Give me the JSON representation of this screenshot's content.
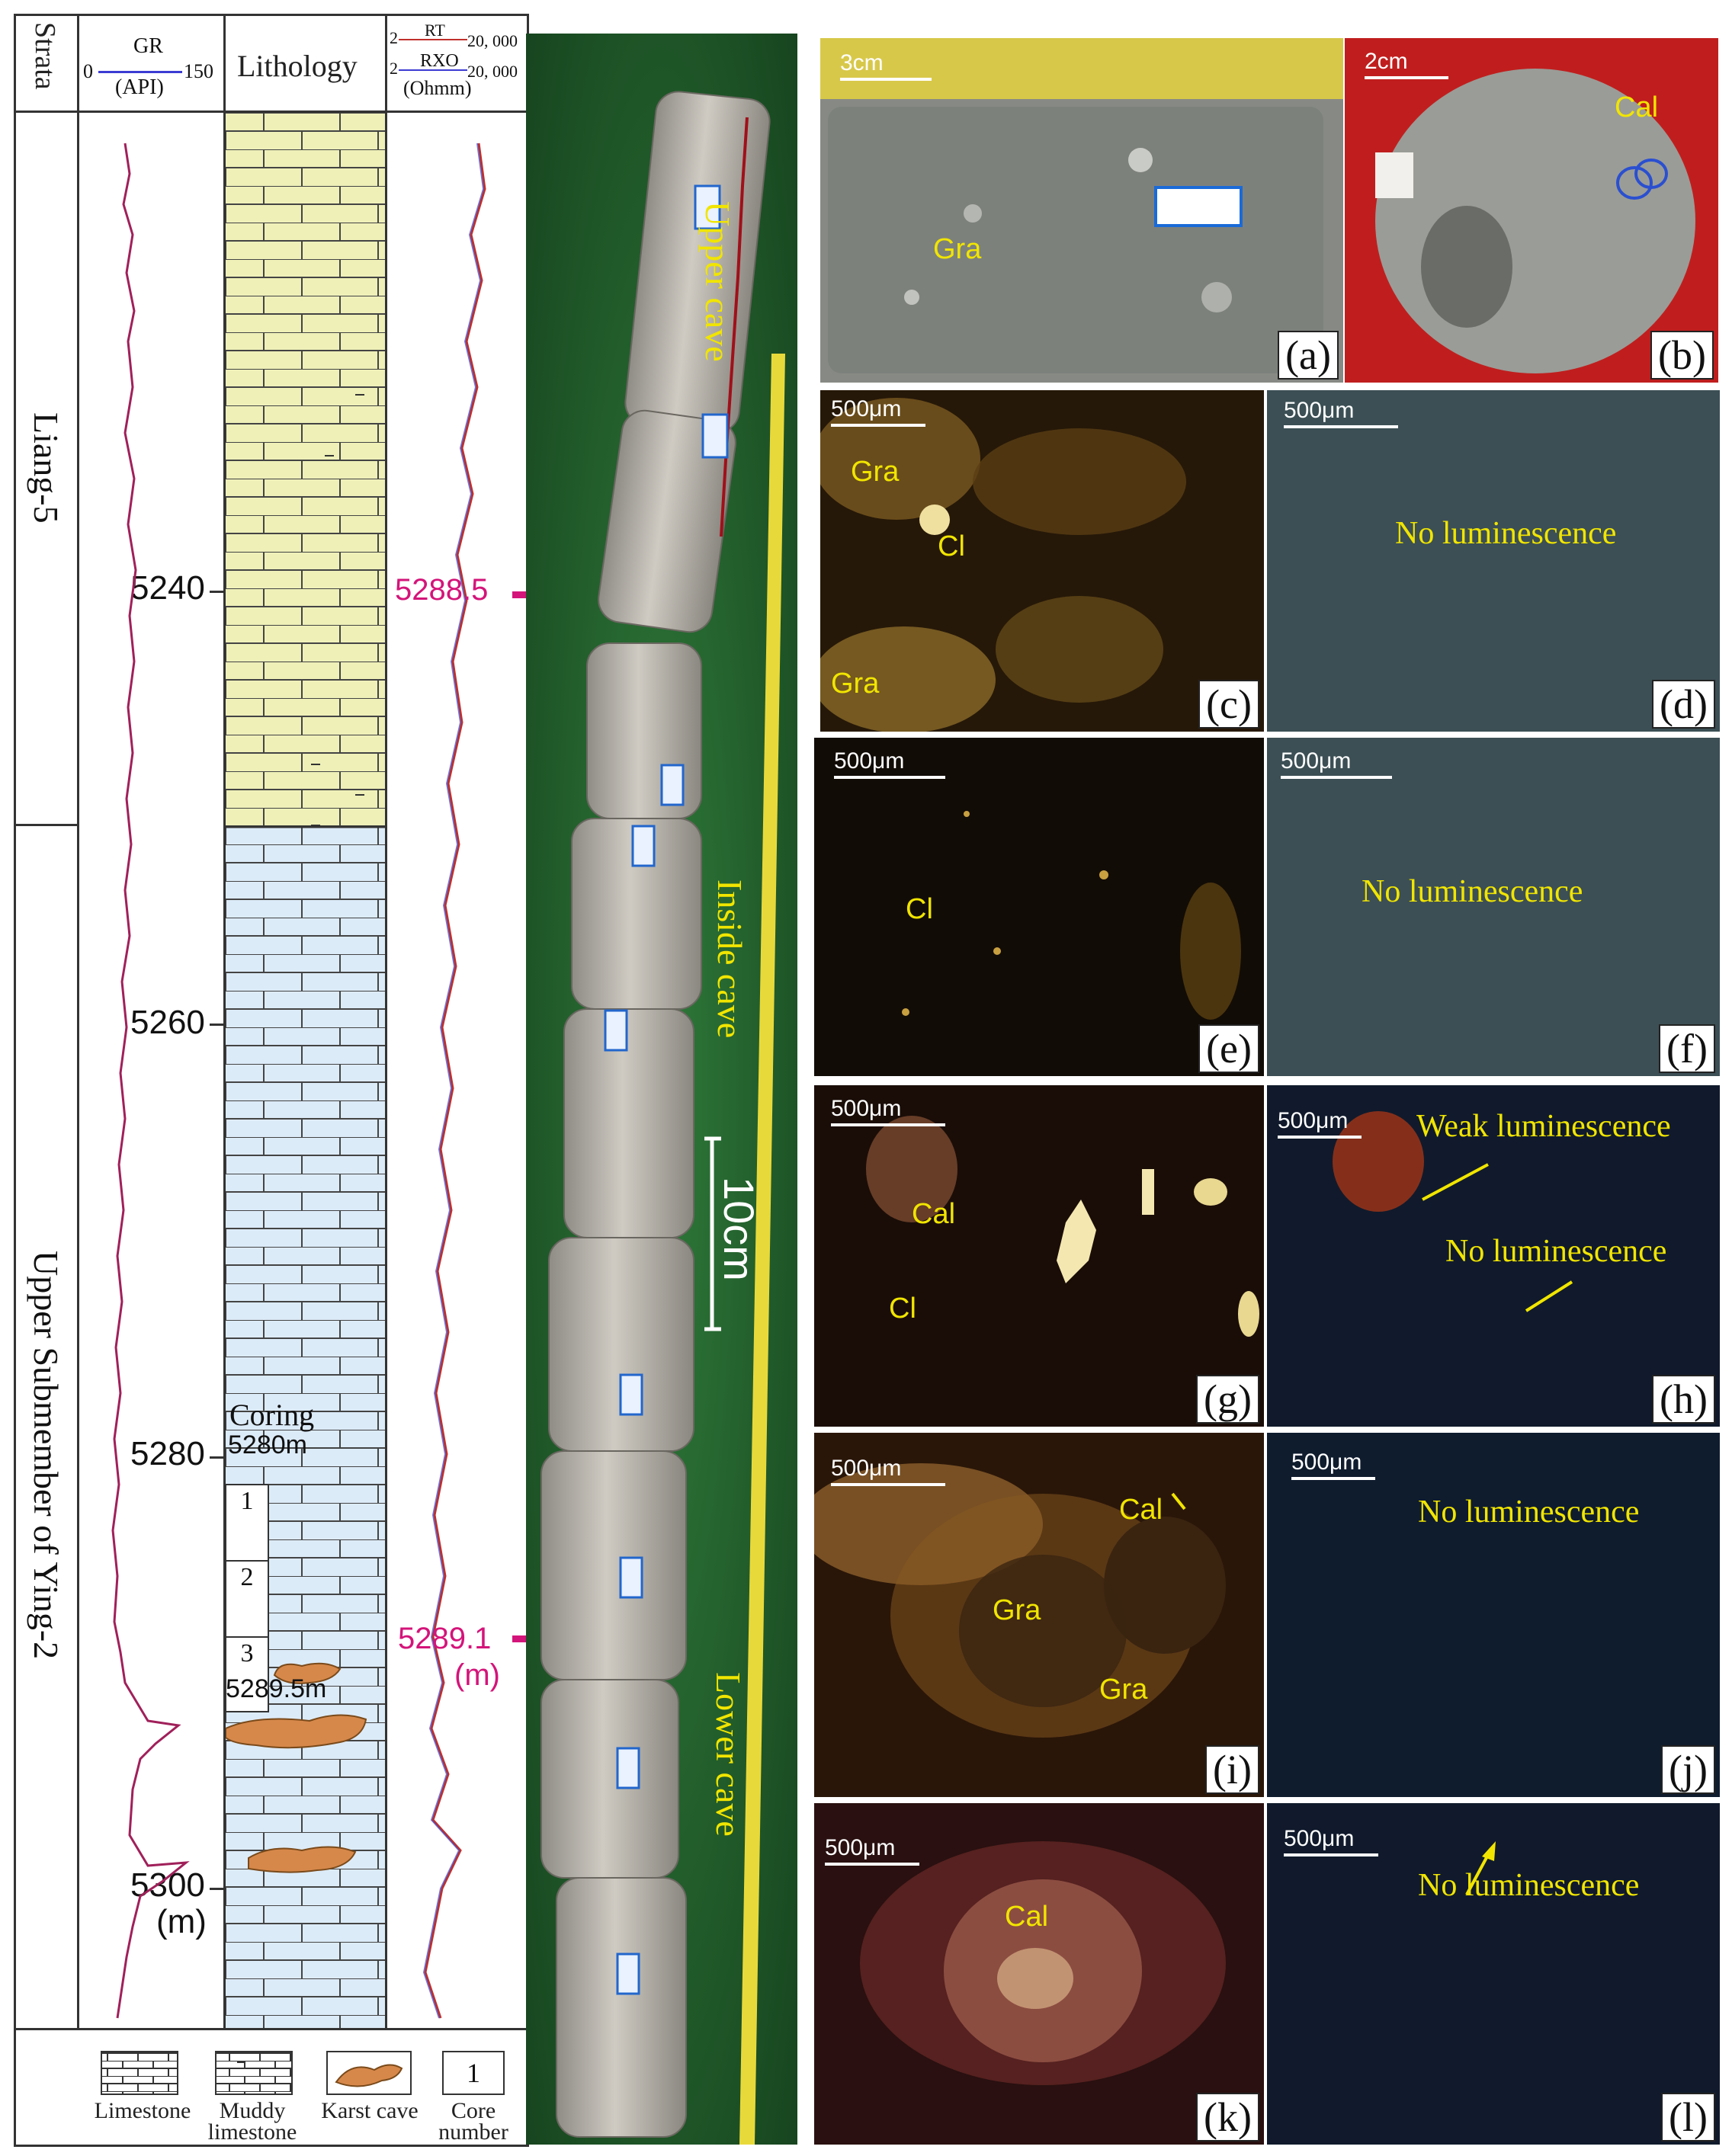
{
  "log": {
    "strata_header": "Strata",
    "gr_header": {
      "name": "GR",
      "unit": "(API)",
      "min": "0",
      "max": "150"
    },
    "lithology_header": "Lithology",
    "res_header": {
      "rt": "RT",
      "rxo": "RXO",
      "min1": "2",
      "max1": "20, 000",
      "min2": "2",
      "max2": "20, 000",
      "unit": "(Ohmm)"
    },
    "strata": [
      {
        "label": "Liang-5"
      },
      {
        "label": "Upper Submember of Ying-2"
      }
    ],
    "depth_ticks": [
      "5240",
      "5260",
      "5280",
      "5300"
    ],
    "depth_unit": "(m)",
    "coring_label": "Coring",
    "coring_top": "5280m",
    "coring_bottom": "5289.5m",
    "core_numbers": [
      "1",
      "2",
      "3"
    ],
    "legend": [
      {
        "label": "Limestone"
      },
      {
        "label": "Muddy limestone"
      },
      {
        "label": "Karst cave"
      },
      {
        "label": "Core number",
        "symbol": "1"
      }
    ]
  },
  "core_photo": {
    "sections": [
      "Upper cave",
      "Inside cave",
      "Lower cave"
    ],
    "markers": [
      {
        "label": "5288.5"
      },
      {
        "label": "5289.1",
        "unit": "(m)"
      }
    ],
    "scale_label": "10cm"
  },
  "panels": [
    {
      "id": "a",
      "label": "(a)",
      "scale": "3cm",
      "annotations": [
        "Gra"
      ]
    },
    {
      "id": "b",
      "label": "(b)",
      "scale": "2cm",
      "annotations": [
        "Cal"
      ]
    },
    {
      "id": "c",
      "label": "(c)",
      "scale": "500μm",
      "annotations": [
        "Gra",
        "Cl",
        "Gra"
      ]
    },
    {
      "id": "d",
      "label": "(d)",
      "scale": "500μm",
      "annotations": [
        "No luminescence"
      ]
    },
    {
      "id": "e",
      "label": "(e)",
      "scale": "500μm",
      "annotations": [
        "Cl"
      ]
    },
    {
      "id": "f",
      "label": "(f)",
      "scale": "500μm",
      "annotations": [
        "No luminescence"
      ]
    },
    {
      "id": "g",
      "label": "(g)",
      "scale": "500μm",
      "annotations": [
        "Cal",
        "Cl"
      ]
    },
    {
      "id": "h",
      "label": "(h)",
      "scale": "500μm",
      "annotations": [
        "Weak luminescence",
        "No luminescence"
      ]
    },
    {
      "id": "i",
      "label": "(i)",
      "scale": "500μm",
      "annotations": [
        "Cal",
        "Gra",
        "Gra"
      ]
    },
    {
      "id": "j",
      "label": "(j)",
      "scale": "500μm",
      "annotations": [
        "No luminescence"
      ]
    },
    {
      "id": "k",
      "label": "(k)",
      "scale": "500μm",
      "annotations": [
        "Cal"
      ]
    },
    {
      "id": "l",
      "label": "(l)",
      "scale": "500μm",
      "annotations": [
        "No luminescence"
      ]
    }
  ],
  "colors": {
    "muddy_limestone": "#eef0b8",
    "limestone": "#dcebf8",
    "karst_cave": "#d6884a",
    "gr_curve": "#a0205a",
    "marker_line": "#d4147a",
    "annotation": "#f1e500",
    "core_background": "#1e5a2a"
  }
}
